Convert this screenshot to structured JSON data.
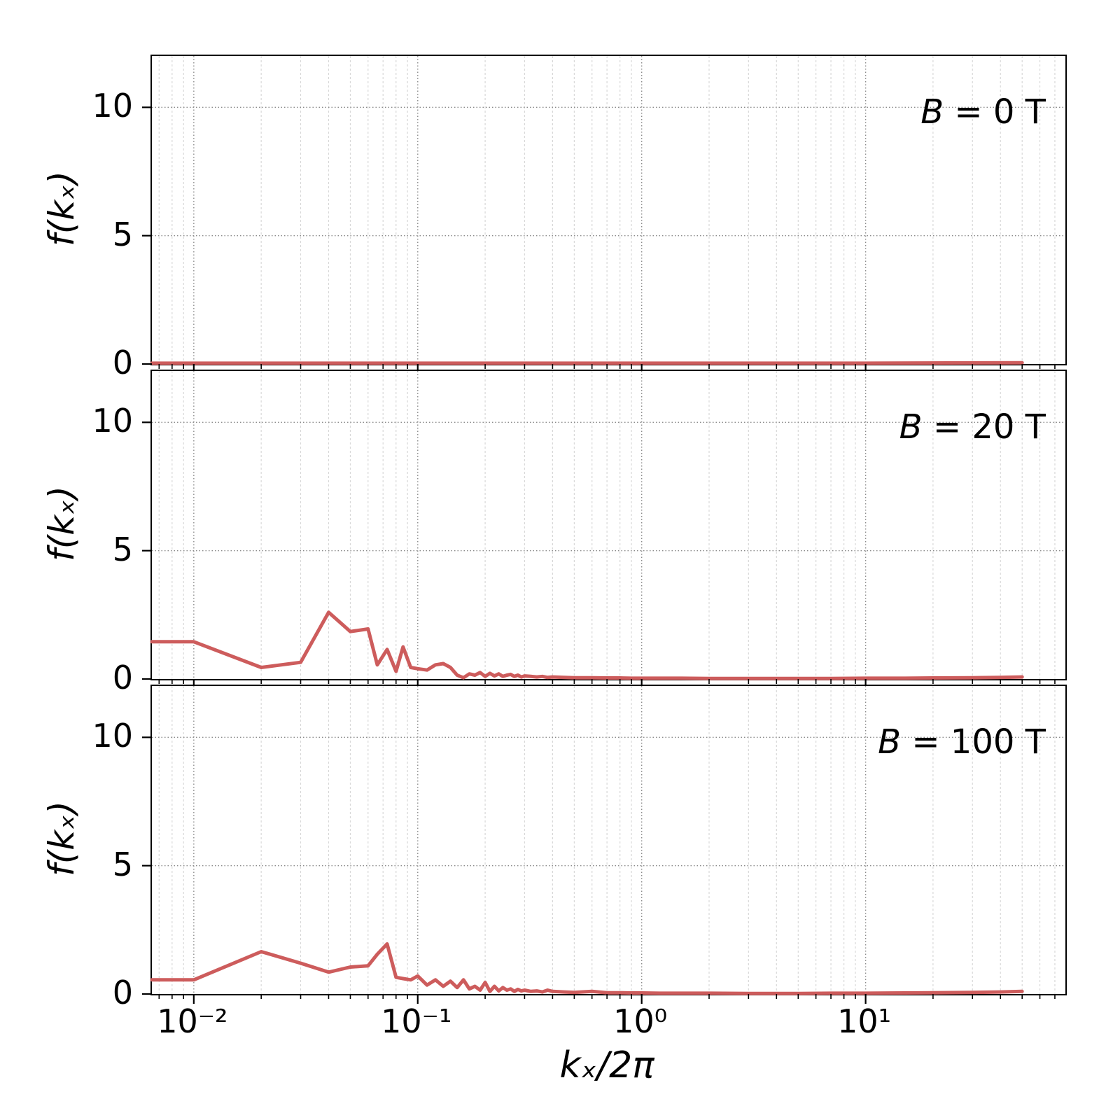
{
  "chart_data": {
    "type": "line",
    "title": "",
    "xlabel": "kₓ/2π",
    "ylabel": "f(kₓ)",
    "x_scale": "log",
    "y_scale": "linear",
    "xlim": [
      0.0065,
      78
    ],
    "ylim": [
      0,
      12
    ],
    "grid": {
      "major": true,
      "minor_vertical": true,
      "style": "dotted"
    },
    "legend": "none",
    "line_color": "#cd5c5c",
    "xticks": [
      {
        "value": 0.01,
        "label": "10⁻²"
      },
      {
        "value": 0.1,
        "label": "10⁻¹"
      },
      {
        "value": 1,
        "label": "10⁰"
      },
      {
        "value": 10,
        "label": "10¹"
      }
    ],
    "yticks": [
      {
        "value": 0,
        "label": "0"
      },
      {
        "value": 5,
        "label": "5"
      },
      {
        "value": 10,
        "label": "10"
      }
    ],
    "panels": [
      {
        "label_var": "B",
        "label_rest": " = 0 T",
        "x": [
          0.0065,
          0.01,
          0.1,
          1.0,
          10.0,
          50.0
        ],
        "y": [
          0.03,
          0.03,
          0.03,
          0.03,
          0.03,
          0.05
        ]
      },
      {
        "label_var": "B",
        "label_rest": " = 20 T",
        "x": [
          0.0065,
          0.01,
          0.02,
          0.03,
          0.04,
          0.05,
          0.06,
          0.066,
          0.073,
          0.08,
          0.086,
          0.093,
          0.1,
          0.11,
          0.12,
          0.13,
          0.14,
          0.15,
          0.16,
          0.17,
          0.18,
          0.19,
          0.2,
          0.21,
          0.22,
          0.23,
          0.24,
          0.25,
          0.26,
          0.27,
          0.28,
          0.29,
          0.3,
          0.32,
          0.34,
          0.36,
          0.38,
          0.4,
          0.45,
          0.5,
          0.6,
          0.7,
          0.8,
          0.9,
          1.0,
          1.2,
          1.5,
          2.0,
          3.0,
          5.0,
          7.0,
          10.0,
          15.0,
          20.0,
          30.0,
          40.0,
          50.0
        ],
        "y": [
          1.45,
          1.45,
          0.45,
          0.65,
          2.6,
          1.85,
          1.95,
          0.55,
          1.15,
          0.3,
          1.25,
          0.45,
          0.4,
          0.35,
          0.55,
          0.6,
          0.45,
          0.15,
          0.05,
          0.2,
          0.15,
          0.25,
          0.1,
          0.22,
          0.12,
          0.2,
          0.1,
          0.15,
          0.18,
          0.1,
          0.15,
          0.08,
          0.12,
          0.1,
          0.08,
          0.1,
          0.06,
          0.08,
          0.06,
          0.05,
          0.05,
          0.04,
          0.04,
          0.03,
          0.03,
          0.03,
          0.03,
          0.02,
          0.02,
          0.02,
          0.02,
          0.03,
          0.03,
          0.04,
          0.05,
          0.06,
          0.08
        ]
      },
      {
        "label_var": "B",
        "label_rest": " = 100 T",
        "x": [
          0.0065,
          0.01,
          0.02,
          0.03,
          0.04,
          0.05,
          0.06,
          0.066,
          0.073,
          0.08,
          0.086,
          0.093,
          0.1,
          0.11,
          0.12,
          0.13,
          0.14,
          0.15,
          0.16,
          0.17,
          0.18,
          0.19,
          0.2,
          0.21,
          0.22,
          0.23,
          0.24,
          0.25,
          0.26,
          0.27,
          0.28,
          0.29,
          0.3,
          0.32,
          0.34,
          0.36,
          0.38,
          0.4,
          0.45,
          0.5,
          0.6,
          0.7,
          0.8,
          0.9,
          1.0,
          1.2,
          1.5,
          2.0,
          3.0,
          5.0,
          7.0,
          10.0,
          15.0,
          20.0,
          30.0,
          40.0,
          50.0
        ],
        "y": [
          0.55,
          0.55,
          1.65,
          1.2,
          0.85,
          1.05,
          1.1,
          1.55,
          1.95,
          0.65,
          0.6,
          0.55,
          0.7,
          0.35,
          0.55,
          0.3,
          0.5,
          0.25,
          0.55,
          0.2,
          0.3,
          0.15,
          0.45,
          0.1,
          0.3,
          0.12,
          0.25,
          0.15,
          0.2,
          0.1,
          0.18,
          0.12,
          0.15,
          0.1,
          0.12,
          0.08,
          0.15,
          0.1,
          0.08,
          0.06,
          0.1,
          0.05,
          0.05,
          0.04,
          0.04,
          0.03,
          0.03,
          0.03,
          0.02,
          0.02,
          0.03,
          0.03,
          0.04,
          0.05,
          0.06,
          0.08,
          0.1
        ]
      }
    ]
  }
}
